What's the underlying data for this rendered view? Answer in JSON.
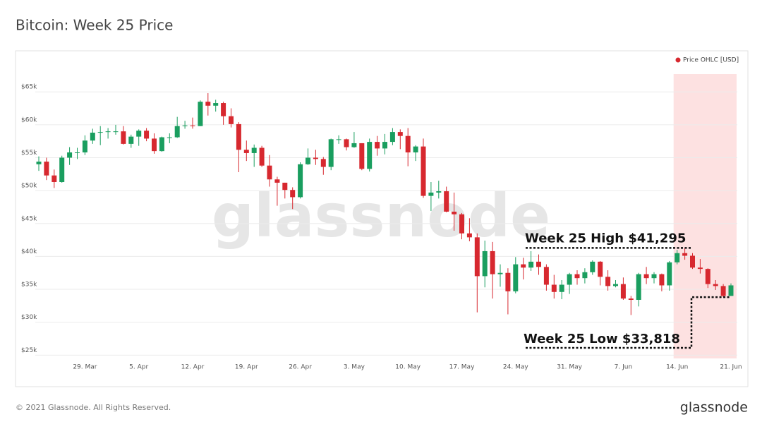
{
  "chart_data": {
    "type": "candlestick",
    "title": "Bitcoin: Week 25 Price",
    "watermark": "glassnode",
    "footer": "© 2021 Glassnode. All Rights Reserved.",
    "brand": "glassnode",
    "up_color": "#1a9e5f",
    "down_color": "#d7282f",
    "highlight_color": "#fde1e1",
    "categories": [
      null,
      null,
      null,
      null,
      null,
      null,
      "29. Mar",
      null,
      null,
      null,
      null,
      null,
      null,
      "5. Apr",
      null,
      null,
      null,
      null,
      null,
      null,
      "12. Apr",
      null,
      null,
      null,
      null,
      null,
      null,
      "19. Apr",
      null,
      null,
      null,
      null,
      null,
      null,
      "26. Apr",
      null,
      null,
      null,
      null,
      null,
      null,
      "3. May",
      null,
      null,
      null,
      null,
      null,
      null,
      "10. May",
      null,
      null,
      null,
      null,
      null,
      null,
      "17. May",
      null,
      null,
      null,
      null,
      null,
      null,
      "24. May",
      null,
      null,
      null,
      null,
      null,
      null,
      "31. May",
      null,
      null,
      null,
      null,
      null,
      null,
      "7. Jun",
      null,
      null,
      null,
      null,
      null,
      null,
      "14. Jun",
      null,
      null,
      null,
      null,
      null,
      null,
      "21. Jun"
    ],
    "series": [
      {
        "name": "Price OHLC [USD]",
        "color": "#d7282f",
        "open": [
          54000,
          54400,
          52300,
          51300,
          55000,
          55800,
          55800,
          57600,
          58800,
          58900,
          59000,
          59000,
          57100,
          58200,
          59100,
          57900,
          56000,
          58100,
          58100,
          59800,
          59900,
          59800,
          63500,
          62900,
          63300,
          61300,
          60100,
          56200,
          55700,
          56500,
          53800,
          51700,
          51200,
          50100,
          49000,
          54000,
          55000,
          54800,
          53600,
          57800,
          57800,
          56600,
          57200,
          53300,
          57400,
          56400,
          57400,
          58900,
          58300,
          55800,
          56700,
          49200,
          49700,
          49900,
          46800,
          46400,
          43500,
          42900,
          37000,
          40800,
          37300,
          37500,
          34700,
          38800,
          38300,
          39200,
          38400,
          35700,
          34600,
          35700,
          37300,
          36700,
          37600,
          39200,
          36900,
          35500,
          35800,
          33600,
          33400,
          37300,
          36700,
          37300,
          35600,
          39100,
          40500,
          40100,
          38300,
          38100,
          35800,
          35500,
          34000
        ],
        "high": [
          55200,
          55000,
          53200,
          55300,
          56600,
          56500,
          58400,
          59400,
          59800,
          59500,
          60000,
          59800,
          58500,
          59300,
          59500,
          58700,
          58200,
          58700,
          61200,
          60600,
          61100,
          63700,
          64800,
          63800,
          63500,
          62500,
          60400,
          57600,
          57000,
          56800,
          55400,
          52100,
          51200,
          50500,
          54300,
          56400,
          56200,
          55100,
          57900,
          58400,
          57900,
          58900,
          57200,
          57900,
          58300,
          58600,
          59500,
          59300,
          59500,
          56900,
          57900,
          51300,
          51500,
          50600,
          49700,
          46600,
          45800,
          43500,
          42400,
          42200,
          38800,
          38200,
          39900,
          39800,
          40800,
          40300,
          38800,
          37200,
          36400,
          37500,
          37900,
          38200,
          39400,
          39300,
          37900,
          36400,
          36800,
          34000,
          37500,
          38400,
          37600,
          37400,
          39300,
          41000,
          41295,
          40500,
          39600,
          38200,
          36400,
          35800,
          35900
        ],
        "low": [
          53000,
          51600,
          50400,
          51200,
          53900,
          54800,
          55400,
          57100,
          56900,
          57900,
          58500,
          57000,
          56500,
          56800,
          57500,
          55600,
          55900,
          57200,
          58000,
          59400,
          59400,
          59800,
          61400,
          62000,
          60000,
          59600,
          52800,
          54500,
          53600,
          53600,
          50600,
          47700,
          48800,
          47200,
          48800,
          53900,
          53900,
          52400,
          53100,
          57100,
          56100,
          56500,
          53100,
          52900,
          55300,
          55500,
          56900,
          56300,
          53700,
          54500,
          48900,
          46900,
          48800,
          46700,
          43900,
          42600,
          42300,
          31500,
          35300,
          33600,
          35400,
          31200,
          34400,
          36500,
          37800,
          37200,
          34800,
          33600,
          33500,
          34300,
          35700,
          35900,
          37200,
          35600,
          34800,
          35300,
          33400,
          31100,
          32400,
          35800,
          35900,
          34700,
          34800,
          38800,
          39500,
          38100,
          37400,
          35200,
          34900,
          33818,
          34000
        ],
        "close": [
          54400,
          52300,
          51300,
          55000,
          55800,
          55800,
          57600,
          58800,
          58900,
          59000,
          59000,
          57100,
          58200,
          59100,
          57900,
          56000,
          58100,
          58100,
          59800,
          59900,
          59800,
          63500,
          62900,
          63300,
          61300,
          60100,
          56200,
          55700,
          56500,
          53800,
          51700,
          51200,
          50100,
          49000,
          54000,
          55000,
          54800,
          53600,
          57800,
          57800,
          56600,
          57200,
          53300,
          57400,
          56400,
          57400,
          58900,
          58300,
          55800,
          56700,
          49200,
          49700,
          49900,
          46800,
          46400,
          43500,
          42900,
          37000,
          40800,
          37300,
          37500,
          34700,
          38800,
          38300,
          39200,
          38400,
          35700,
          34600,
          35700,
          37300,
          36700,
          37600,
          39200,
          36900,
          35500,
          35800,
          33600,
          33400,
          37300,
          36700,
          37300,
          35600,
          39100,
          40500,
          40100,
          38300,
          38100,
          35800,
          35500,
          34000,
          35600
        ]
      }
    ],
    "annotations": [
      {
        "text": "Week 25 High $41,295",
        "value": 41295
      },
      {
        "text": "Week 25 Low $33,818",
        "value": 33818
      }
    ],
    "ylim": [
      24500,
      67700
    ],
    "yticks": [
      {
        "value": 25000,
        "label": "$25k"
      },
      {
        "value": 30000,
        "label": "$30k"
      },
      {
        "value": 35000,
        "label": "$35k"
      },
      {
        "value": 40000,
        "label": "$40k"
      },
      {
        "value": 45000,
        "label": "$45k"
      },
      {
        "value": 50000,
        "label": "$50k"
      },
      {
        "value": 55000,
        "label": "$55k"
      },
      {
        "value": 60000,
        "label": "$60k"
      },
      {
        "value": 65000,
        "label": "$65k"
      }
    ],
    "grid": true
  }
}
